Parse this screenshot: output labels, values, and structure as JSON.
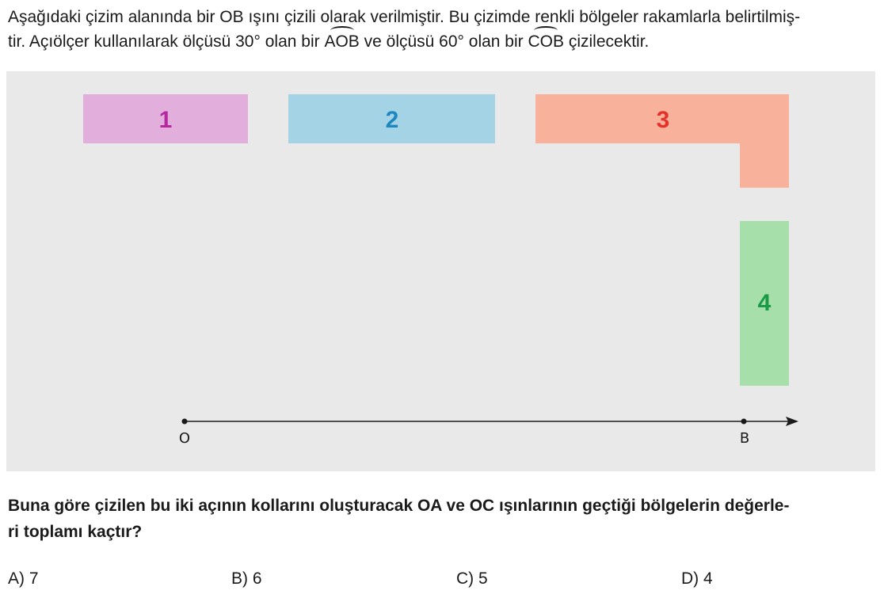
{
  "intro": {
    "line1": "Aşağıdaki çizim alanında bir OB ışını çizili olarak verilmiştir. Bu çizimde renkli bölgeler rakamlarla belirtilmiş-",
    "line2_a": "tir. Açıölçer kullanılarak ölçüsü 30° olan bir ",
    "angle1": "AOB",
    "line2_b": " ve ölçüsü 60° olan bir ",
    "angle2": "COB",
    "line2_c": " çizilecektir."
  },
  "figure": {
    "background": "#e9e9e9",
    "regions": [
      {
        "label": "1",
        "fill": "#e2aedc",
        "text_color": "#b5289e"
      },
      {
        "label": "2",
        "fill": "#a5d3e6",
        "text_color": "#1f87c0"
      },
      {
        "label": "3",
        "fill": "#f8b19b",
        "text_color": "#e5312a"
      },
      {
        "label": "4",
        "fill": "#a6dfaa",
        "text_color": "#1a9a47"
      }
    ],
    "ray": {
      "origin_label": "O",
      "point_label": "B"
    }
  },
  "question": {
    "line1": "Buna göre çizilen bu iki açının kollarını oluşturacak OA ve OC ışınlarının geçtiği bölgelerin değerle-",
    "line2": "ri toplamı kaçtır?"
  },
  "options": [
    {
      "text": "A) 7"
    },
    {
      "text": "B) 6"
    },
    {
      "text": "C) 5"
    },
    {
      "text": "D) 4"
    }
  ]
}
